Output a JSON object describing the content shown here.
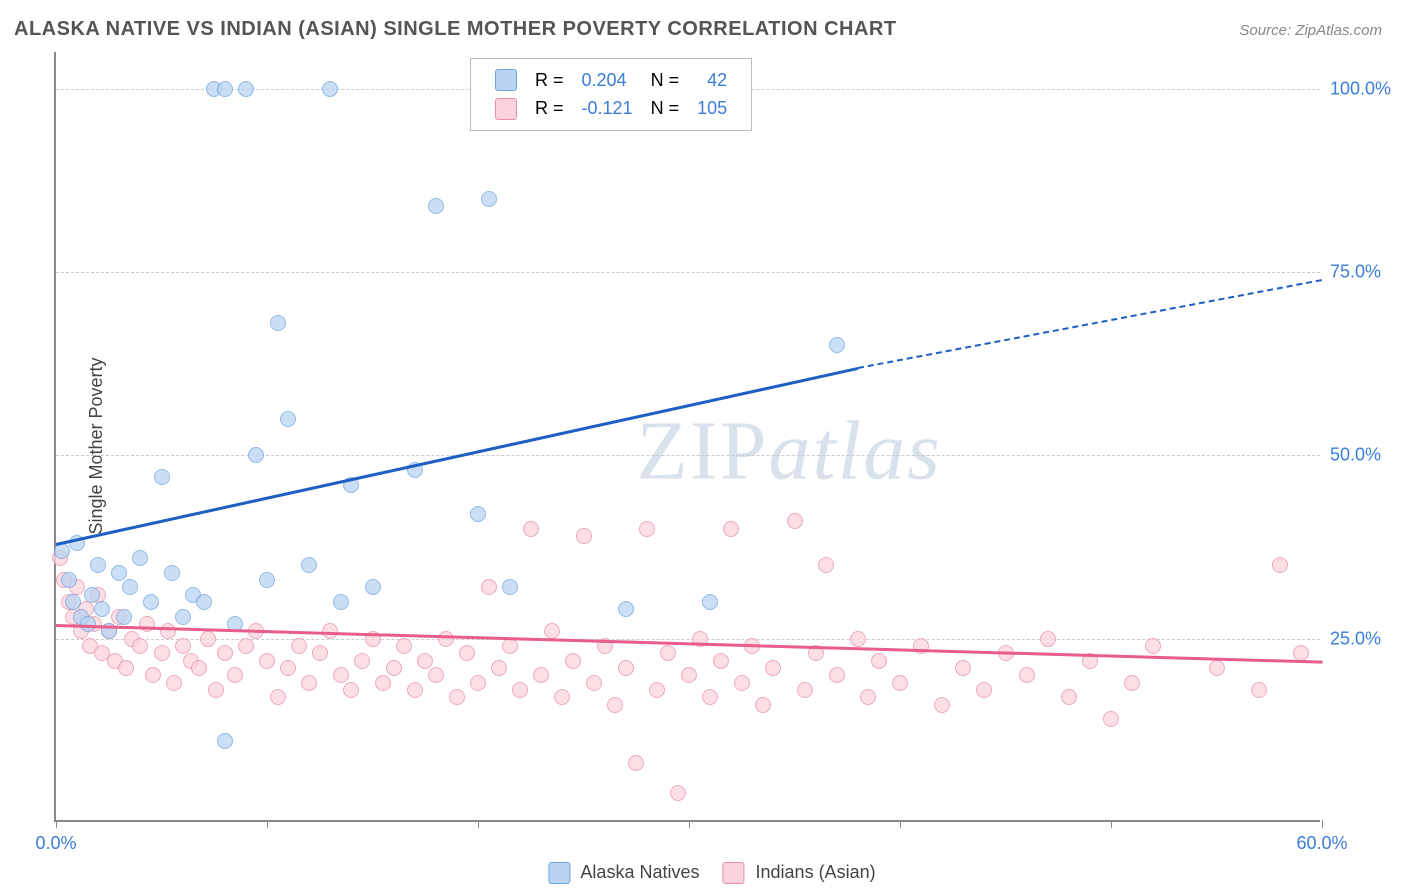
{
  "title": "ALASKA NATIVE VS INDIAN (ASIAN) SINGLE MOTHER POVERTY CORRELATION CHART",
  "source_label": "Source: ",
  "source_value": "ZipAtlas.com",
  "ylabel": "Single Mother Poverty",
  "watermark": "ZIPatlas",
  "chart": {
    "type": "scatter",
    "xlim": [
      0,
      60
    ],
    "ylim": [
      0,
      105
    ],
    "xtick_positions": [
      0,
      10,
      20,
      30,
      40,
      50,
      60
    ],
    "xtick_labels_shown": {
      "0": "0.0%",
      "60": "60.0%"
    },
    "ytick_positions": [
      25,
      50,
      75,
      100
    ],
    "ytick_labels": [
      "25.0%",
      "50.0%",
      "75.0%",
      "100.0%"
    ],
    "grid_color": "#cccccc",
    "background_color": "#ffffff",
    "axis_color": "#888888",
    "label_fontsize": 18,
    "title_fontsize": 20,
    "tick_color": "#3b7dd8",
    "marker_size": 16,
    "marker_opacity": 0.75
  },
  "series": {
    "blue": {
      "name": "Alaska Natives",
      "fill": "#b9d4f2",
      "stroke": "#6fa3de",
      "R": "0.204",
      "N": "42",
      "regression": {
        "x1": 0,
        "y1": 38,
        "x2": 38,
        "y2": 62,
        "solid_end_x": 38,
        "dash_end_x": 60,
        "dash_end_y": 74,
        "color": "#1e5fc4"
      },
      "points": [
        [
          0.3,
          37
        ],
        [
          0.6,
          33
        ],
        [
          0.8,
          30
        ],
        [
          1.0,
          38
        ],
        [
          1.2,
          28
        ],
        [
          1.5,
          27
        ],
        [
          1.7,
          31
        ],
        [
          2.0,
          35
        ],
        [
          2.2,
          29
        ],
        [
          2.5,
          26
        ],
        [
          3.0,
          34
        ],
        [
          3.2,
          28
        ],
        [
          3.5,
          32
        ],
        [
          4.0,
          36
        ],
        [
          4.5,
          30
        ],
        [
          5.0,
          47
        ],
        [
          5.5,
          34
        ],
        [
          6.0,
          28
        ],
        [
          6.5,
          31
        ],
        [
          7.0,
          30
        ],
        [
          7.5,
          100
        ],
        [
          8.0,
          100
        ],
        [
          8.5,
          27
        ],
        [
          9.0,
          100
        ],
        [
          9.5,
          50
        ],
        [
          10.0,
          33
        ],
        [
          10.5,
          68
        ],
        [
          11.0,
          55
        ],
        [
          12.0,
          35
        ],
        [
          13.0,
          100
        ],
        [
          13.5,
          30
        ],
        [
          14.0,
          46
        ],
        [
          15.0,
          32
        ],
        [
          17.0,
          48
        ],
        [
          18.0,
          84
        ],
        [
          20.0,
          42
        ],
        [
          20.5,
          85
        ],
        [
          21.5,
          32
        ],
        [
          27.0,
          29
        ],
        [
          31.0,
          30
        ],
        [
          8.0,
          11
        ],
        [
          37.0,
          65
        ]
      ]
    },
    "pink": {
      "name": "Indians (Asian)",
      "fill": "#fbd3dd",
      "stroke": "#e98fa9",
      "R": "-0.121",
      "N": "105",
      "regression": {
        "x1": 0,
        "y1": 27,
        "x2": 60,
        "y2": 22,
        "color": "#e85d8a"
      },
      "points": [
        [
          0.2,
          36
        ],
        [
          0.4,
          33
        ],
        [
          0.6,
          30
        ],
        [
          0.8,
          28
        ],
        [
          1.0,
          32
        ],
        [
          1.2,
          26
        ],
        [
          1.4,
          29
        ],
        [
          1.6,
          24
        ],
        [
          1.8,
          27
        ],
        [
          2.0,
          31
        ],
        [
          2.2,
          23
        ],
        [
          2.5,
          26
        ],
        [
          2.8,
          22
        ],
        [
          3.0,
          28
        ],
        [
          3.3,
          21
        ],
        [
          3.6,
          25
        ],
        [
          4.0,
          24
        ],
        [
          4.3,
          27
        ],
        [
          4.6,
          20
        ],
        [
          5.0,
          23
        ],
        [
          5.3,
          26
        ],
        [
          5.6,
          19
        ],
        [
          6.0,
          24
        ],
        [
          6.4,
          22
        ],
        [
          6.8,
          21
        ],
        [
          7.2,
          25
        ],
        [
          7.6,
          18
        ],
        [
          8.0,
          23
        ],
        [
          8.5,
          20
        ],
        [
          9.0,
          24
        ],
        [
          9.5,
          26
        ],
        [
          10.0,
          22
        ],
        [
          10.5,
          17
        ],
        [
          11.0,
          21
        ],
        [
          11.5,
          24
        ],
        [
          12.0,
          19
        ],
        [
          12.5,
          23
        ],
        [
          13.0,
          26
        ],
        [
          13.5,
          20
        ],
        [
          14.0,
          18
        ],
        [
          14.5,
          22
        ],
        [
          15.0,
          25
        ],
        [
          15.5,
          19
        ],
        [
          16.0,
          21
        ],
        [
          16.5,
          24
        ],
        [
          17.0,
          18
        ],
        [
          17.5,
          22
        ],
        [
          18.0,
          20
        ],
        [
          18.5,
          25
        ],
        [
          19.0,
          17
        ],
        [
          19.5,
          23
        ],
        [
          20.0,
          19
        ],
        [
          20.5,
          32
        ],
        [
          21.0,
          21
        ],
        [
          21.5,
          24
        ],
        [
          22.0,
          18
        ],
        [
          22.5,
          40
        ],
        [
          23.0,
          20
        ],
        [
          23.5,
          26
        ],
        [
          24.0,
          17
        ],
        [
          24.5,
          22
        ],
        [
          25.0,
          39
        ],
        [
          25.5,
          19
        ],
        [
          26.0,
          24
        ],
        [
          26.5,
          16
        ],
        [
          27.0,
          21
        ],
        [
          27.5,
          8
        ],
        [
          28.0,
          40
        ],
        [
          28.5,
          18
        ],
        [
          29.0,
          23
        ],
        [
          29.5,
          4
        ],
        [
          30.0,
          20
        ],
        [
          30.5,
          25
        ],
        [
          31.0,
          17
        ],
        [
          31.5,
          22
        ],
        [
          32.0,
          40
        ],
        [
          32.5,
          19
        ],
        [
          33.0,
          24
        ],
        [
          33.5,
          16
        ],
        [
          34.0,
          21
        ],
        [
          35.0,
          41
        ],
        [
          35.5,
          18
        ],
        [
          36.0,
          23
        ],
        [
          36.5,
          35
        ],
        [
          37.0,
          20
        ],
        [
          38.0,
          25
        ],
        [
          38.5,
          17
        ],
        [
          39.0,
          22
        ],
        [
          40.0,
          19
        ],
        [
          41.0,
          24
        ],
        [
          42.0,
          16
        ],
        [
          43.0,
          21
        ],
        [
          44.0,
          18
        ],
        [
          45.0,
          23
        ],
        [
          46.0,
          20
        ],
        [
          47.0,
          25
        ],
        [
          48.0,
          17
        ],
        [
          49.0,
          22
        ],
        [
          50.0,
          14
        ],
        [
          51.0,
          19
        ],
        [
          52.0,
          24
        ],
        [
          55.0,
          21
        ],
        [
          57.0,
          18
        ],
        [
          58.0,
          35
        ],
        [
          59.0,
          23
        ]
      ]
    }
  },
  "correlation_legend": {
    "R_label": "R =",
    "N_label": "N ="
  },
  "bottom_legend": {
    "item1": "Alaska Natives",
    "item2": "Indians (Asian)"
  }
}
